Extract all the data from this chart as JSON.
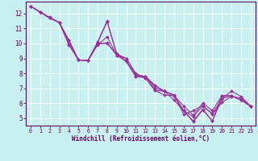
{
  "bg_color": "#c8f0f0",
  "line_color": "#993399",
  "grid_color": "#aadddd",
  "axis_color": "#660066",
  "xlabel": "Windchill (Refroidissement éolien,°C)",
  "xlim": [
    -0.5,
    23.5
  ],
  "ylim": [
    4.5,
    12.8
  ],
  "xticks": [
    0,
    1,
    2,
    3,
    4,
    5,
    6,
    7,
    8,
    9,
    10,
    11,
    12,
    13,
    14,
    15,
    16,
    17,
    18,
    19,
    20,
    21,
    22,
    23
  ],
  "yticks": [
    5,
    6,
    7,
    8,
    9,
    10,
    11,
    12
  ],
  "lines": [
    {
      "x": [
        0,
        1,
        2,
        3,
        4,
        5,
        6,
        7,
        8,
        9,
        10,
        11,
        12,
        13,
        14,
        15,
        16,
        17,
        18,
        19,
        20,
        21,
        22,
        23
      ],
      "y": [
        12.5,
        12.1,
        11.75,
        11.4,
        9.9,
        8.9,
        8.85,
        10.0,
        10.0,
        9.3,
        8.8,
        7.8,
        7.75,
        7.15,
        6.8,
        6.55,
        5.25,
        5.5,
        5.85,
        5.25,
        6.05,
        6.45,
        6.35,
        5.8
      ]
    },
    {
      "x": [
        0,
        1,
        2,
        3,
        4,
        5,
        6,
        7,
        8,
        9,
        10,
        11,
        12,
        13,
        14,
        15,
        16,
        17,
        18,
        19,
        20,
        21,
        22,
        23
      ],
      "y": [
        12.5,
        12.1,
        11.7,
        11.4,
        10.2,
        8.9,
        8.85,
        9.9,
        10.45,
        9.2,
        8.8,
        7.8,
        7.7,
        6.85,
        6.8,
        6.5,
        5.5,
        5.1,
        5.8,
        5.3,
        6.3,
        6.8,
        6.45,
        5.8
      ]
    },
    {
      "x": [
        0,
        1,
        2,
        3,
        4,
        5,
        6,
        7,
        8,
        9,
        10,
        11,
        12,
        13,
        14,
        15,
        16,
        17,
        18,
        19,
        20,
        21,
        22,
        23
      ],
      "y": [
        12.5,
        12.1,
        11.7,
        11.4,
        10.2,
        8.9,
        8.85,
        10.05,
        11.45,
        9.3,
        9.0,
        8.0,
        7.7,
        6.85,
        6.55,
        6.5,
        5.5,
        4.8,
        5.6,
        4.8,
        6.3,
        6.5,
        6.2,
        5.8
      ]
    },
    {
      "x": [
        0,
        1,
        2,
        3,
        4,
        5,
        6,
        7,
        8,
        9,
        10,
        11,
        12,
        13,
        14,
        15,
        16,
        17,
        18,
        19,
        20,
        21,
        22,
        23
      ],
      "y": [
        12.5,
        12.1,
        11.7,
        11.4,
        10.0,
        8.9,
        8.85,
        9.95,
        10.05,
        9.2,
        9.0,
        7.9,
        7.8,
        7.0,
        6.8,
        6.5,
        5.8,
        5.2,
        6.0,
        5.5,
        6.5,
        6.5,
        6.2,
        5.8
      ]
    },
    {
      "x": [
        0,
        1,
        2,
        3,
        4,
        5,
        6,
        7,
        8,
        9,
        10,
        11,
        12,
        13,
        14,
        15,
        16,
        17,
        18,
        19,
        20,
        21,
        22,
        23
      ],
      "y": [
        12.5,
        12.1,
        11.7,
        11.4,
        10.2,
        8.9,
        8.85,
        10.1,
        11.5,
        9.3,
        8.8,
        7.8,
        7.8,
        7.2,
        6.8,
        6.2,
        5.5,
        4.75,
        5.55,
        4.8,
        6.5,
        6.5,
        6.2,
        5.8
      ]
    }
  ]
}
